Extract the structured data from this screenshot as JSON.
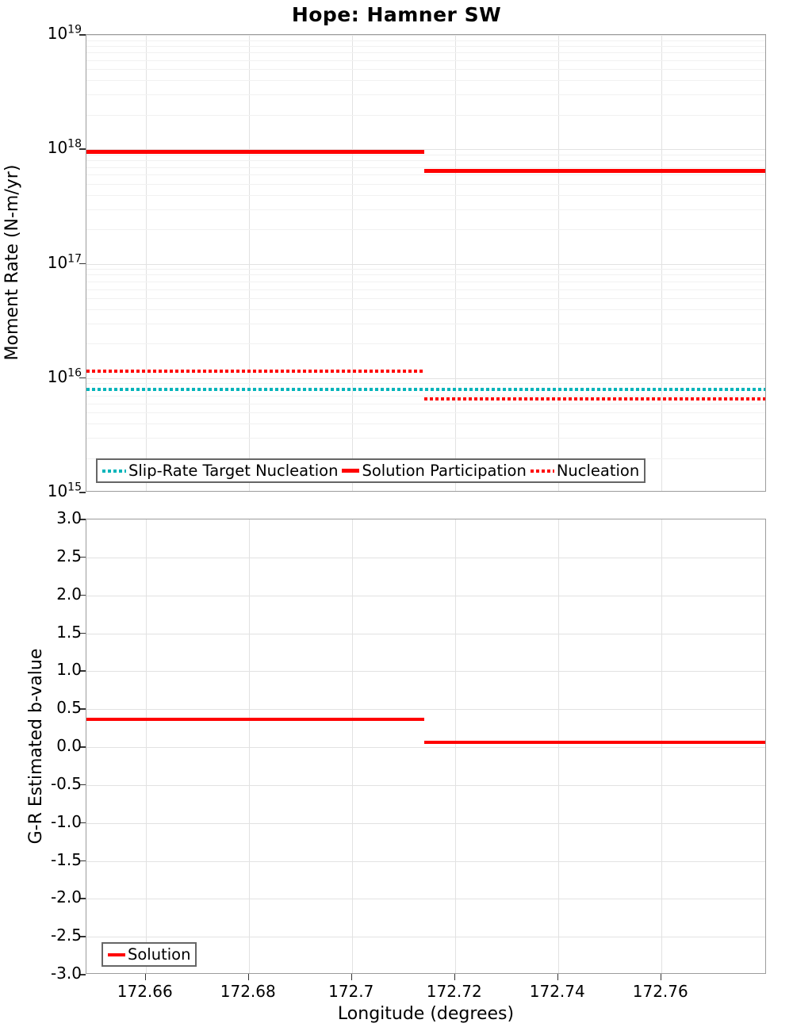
{
  "title": "Hope: Hamner SW",
  "colors": {
    "solution_red": "#ff0000",
    "slip_rate_teal": "#00b4ba",
    "grid_major": "#e2e2e2",
    "grid_minor": "#f1f1f1",
    "spine": "#9c9c9c",
    "tick": "#333333",
    "legend_border": "#666666"
  },
  "x_axis": {
    "label": "Longitude (degrees)",
    "min": 172.6485,
    "max": 172.7805,
    "ticks": [
      {
        "label": "172.66",
        "value": 172.66
      },
      {
        "label": "172.68",
        "value": 172.68
      },
      {
        "label": "172.7",
        "value": 172.7
      },
      {
        "label": "172.72",
        "value": 172.72
      },
      {
        "label": "172.74",
        "value": 172.74
      },
      {
        "label": "172.76",
        "value": 172.76
      }
    ]
  },
  "chart_data": [
    {
      "id": "moment-rate",
      "type": "line",
      "title": "",
      "xlabel": "",
      "ylabel": "Moment Rate (N-m/yr)",
      "yscale": "log",
      "ylim": [
        1000000000000000.0,
        1e+19
      ],
      "grid": true,
      "legend_position": "inside-bottom-left",
      "y_ticks": [
        {
          "mantissa": "10",
          "exponent": "19",
          "value": 1e+19
        },
        {
          "mantissa": "10",
          "exponent": "18",
          "value": 1e+18
        },
        {
          "mantissa": "10",
          "exponent": "17",
          "value": 1e+17
        },
        {
          "mantissa": "10",
          "exponent": "16",
          "value": 1e+16
        },
        {
          "mantissa": "10",
          "exponent": "15",
          "value": 1000000000000000.0
        }
      ],
      "series": [
        {
          "name": "Slip-Rate Target Nucleation",
          "style": "dotted",
          "color": "#00b4ba",
          "thickness": 4,
          "segments": [
            {
              "x_start": 172.6485,
              "x_end": 172.7805,
              "value": 8000000000000000.0
            }
          ]
        },
        {
          "name": "Solution Participation",
          "style": "solid",
          "color": "#ff0000",
          "thickness": 5,
          "segments": [
            {
              "x_start": 172.6485,
              "x_end": 172.714,
              "value": 9.5e+17
            },
            {
              "x_start": 172.714,
              "x_end": 172.7805,
              "value": 6.5e+17
            }
          ]
        },
        {
          "name": "Nucleation",
          "style": "dotted",
          "color": "#ff0000",
          "thickness": 4,
          "segments": [
            {
              "x_start": 172.6485,
              "x_end": 172.714,
              "value": 1.15e+16
            },
            {
              "x_start": 172.714,
              "x_end": 172.7805,
              "value": 6600000000000000.0
            }
          ]
        }
      ]
    },
    {
      "id": "b-value",
      "type": "line",
      "title": "",
      "xlabel": "Longitude (degrees)",
      "ylabel": "G-R Estimated b-value",
      "yscale": "linear",
      "ylim": [
        -3.0,
        3.0
      ],
      "grid": true,
      "legend_position": "inside-bottom-left",
      "y_ticks": [
        {
          "label": "3.0",
          "value": 3.0
        },
        {
          "label": "2.5",
          "value": 2.5
        },
        {
          "label": "2.0",
          "value": 2.0
        },
        {
          "label": "1.5",
          "value": 1.5
        },
        {
          "label": "1.0",
          "value": 1.0
        },
        {
          "label": "0.5",
          "value": 0.5
        },
        {
          "label": "0.0",
          "value": 0.0
        },
        {
          "label": "-0.5",
          "value": -0.5
        },
        {
          "label": "-1.0",
          "value": -1.0
        },
        {
          "label": "-1.5",
          "value": -1.5
        },
        {
          "label": "-2.0",
          "value": -2.0
        },
        {
          "label": "-2.5",
          "value": -2.5
        },
        {
          "label": "-3.0",
          "value": -3.0
        }
      ],
      "series": [
        {
          "name": "Solution",
          "style": "solid",
          "color": "#ff0000",
          "thickness": 4,
          "segments": [
            {
              "x_start": 172.6485,
              "x_end": 172.714,
              "value": 0.37
            },
            {
              "x_start": 172.714,
              "x_end": 172.7805,
              "value": 0.06
            }
          ]
        }
      ]
    }
  ]
}
